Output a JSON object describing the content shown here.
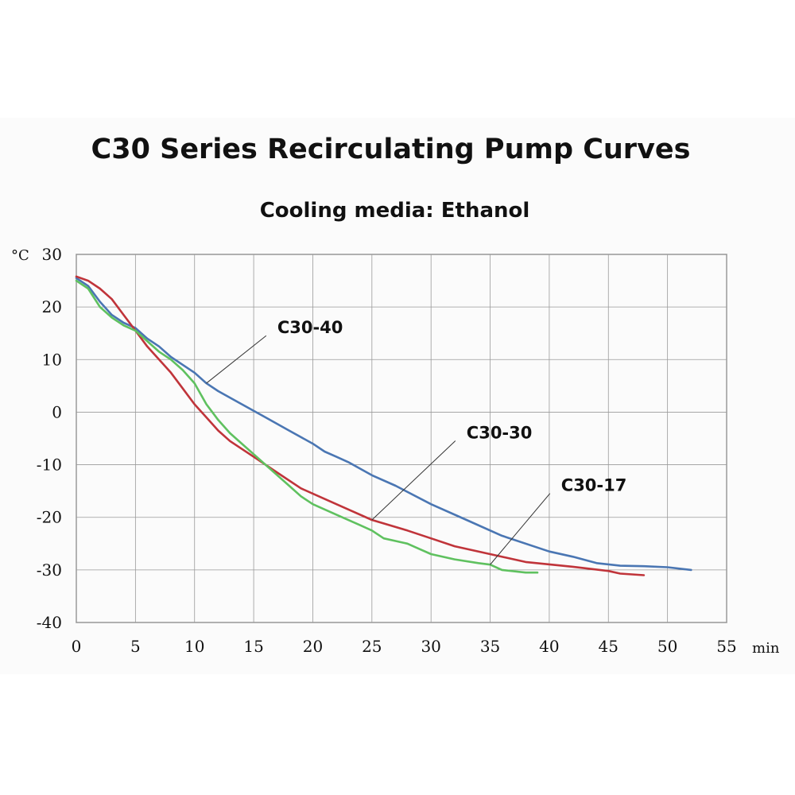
{
  "chart_data": {
    "type": "line",
    "title": "C30 Series Recirculating Pump Curves",
    "subtitle": "Cooling media: Ethanol",
    "xlabel": "min",
    "ylabel": "°C",
    "xlim": [
      0,
      55
    ],
    "ylim": [
      -40,
      30
    ],
    "xticks": [
      0,
      5,
      10,
      15,
      20,
      25,
      30,
      35,
      40,
      45,
      50,
      55
    ],
    "yticks": [
      30,
      20,
      10,
      0,
      -10,
      -20,
      -30,
      -40
    ],
    "grid": true,
    "series": [
      {
        "name": "C30-40",
        "color": "#4a76b3",
        "label_at": [
          17,
          15
        ],
        "pointer_to": [
          11,
          5.5
        ],
        "points": [
          [
            0,
            25.5
          ],
          [
            1,
            24
          ],
          [
            2,
            21
          ],
          [
            3,
            18.5
          ],
          [
            4,
            17
          ],
          [
            5,
            16
          ],
          [
            6,
            14
          ],
          [
            7,
            12.5
          ],
          [
            8,
            10.5
          ],
          [
            9,
            9
          ],
          [
            10,
            7.5
          ],
          [
            11,
            5.5
          ],
          [
            12,
            4
          ],
          [
            14,
            1.5
          ],
          [
            16,
            -1
          ],
          [
            18,
            -3.5
          ],
          [
            20,
            -6
          ],
          [
            21,
            -7.5
          ],
          [
            22,
            -8.5
          ],
          [
            23,
            -9.5
          ],
          [
            25,
            -12
          ],
          [
            27,
            -14
          ],
          [
            30,
            -17.5
          ],
          [
            33,
            -20.5
          ],
          [
            36,
            -23.5
          ],
          [
            40,
            -26.5
          ],
          [
            42,
            -27.5
          ],
          [
            44,
            -28.7
          ],
          [
            46,
            -29.2
          ],
          [
            48,
            -29.3
          ],
          [
            50,
            -29.5
          ],
          [
            52,
            -30
          ]
        ]
      },
      {
        "name": "C30-30",
        "color": "#c0343a",
        "label_at": [
          33,
          -5
        ],
        "pointer_to": [
          25,
          -20.5
        ],
        "points": [
          [
            0,
            25.8
          ],
          [
            1,
            25
          ],
          [
            2,
            23.5
          ],
          [
            3,
            21.5
          ],
          [
            4,
            18.5
          ],
          [
            5,
            15.5
          ],
          [
            6,
            12.5
          ],
          [
            7,
            10
          ],
          [
            8,
            7.5
          ],
          [
            9,
            4.5
          ],
          [
            10,
            1.5
          ],
          [
            11,
            -1
          ],
          [
            12,
            -3.5
          ],
          [
            13,
            -5.5
          ],
          [
            14,
            -7
          ],
          [
            15,
            -8.5
          ],
          [
            17,
            -11.5
          ],
          [
            19,
            -14.5
          ],
          [
            21,
            -16.5
          ],
          [
            23,
            -18.5
          ],
          [
            25,
            -20.5
          ],
          [
            28,
            -22.5
          ],
          [
            30,
            -24
          ],
          [
            32,
            -25.5
          ],
          [
            35,
            -27
          ],
          [
            38,
            -28.5
          ],
          [
            42,
            -29.4
          ],
          [
            45,
            -30.2
          ],
          [
            46,
            -30.7
          ],
          [
            48,
            -31
          ]
        ]
      },
      {
        "name": "C30-17",
        "color": "#5fc15f",
        "label_at": [
          41,
          -15
        ],
        "pointer_to": [
          35,
          -29
        ],
        "points": [
          [
            0,
            25
          ],
          [
            1,
            23.5
          ],
          [
            2,
            20
          ],
          [
            3,
            18
          ],
          [
            4,
            16.5
          ],
          [
            5,
            15.5
          ],
          [
            6,
            13.5
          ],
          [
            7,
            11.5
          ],
          [
            8,
            10
          ],
          [
            9,
            8
          ],
          [
            10,
            5.5
          ],
          [
            11,
            1.5
          ],
          [
            12,
            -1.5
          ],
          [
            13,
            -4
          ],
          [
            14,
            -6
          ],
          [
            15,
            -8
          ],
          [
            16,
            -10
          ],
          [
            17,
            -12
          ],
          [
            18,
            -14
          ],
          [
            19,
            -16
          ],
          [
            20,
            -17.5
          ],
          [
            22,
            -19.5
          ],
          [
            24,
            -21.5
          ],
          [
            25,
            -22.5
          ],
          [
            26,
            -24
          ],
          [
            27,
            -24.5
          ],
          [
            28,
            -25
          ],
          [
            29,
            -26
          ],
          [
            30,
            -27
          ],
          [
            32,
            -28
          ],
          [
            34,
            -28.7
          ],
          [
            35,
            -29
          ],
          [
            36,
            -30
          ],
          [
            38,
            -30.5
          ],
          [
            39,
            -30.5
          ]
        ]
      }
    ]
  }
}
